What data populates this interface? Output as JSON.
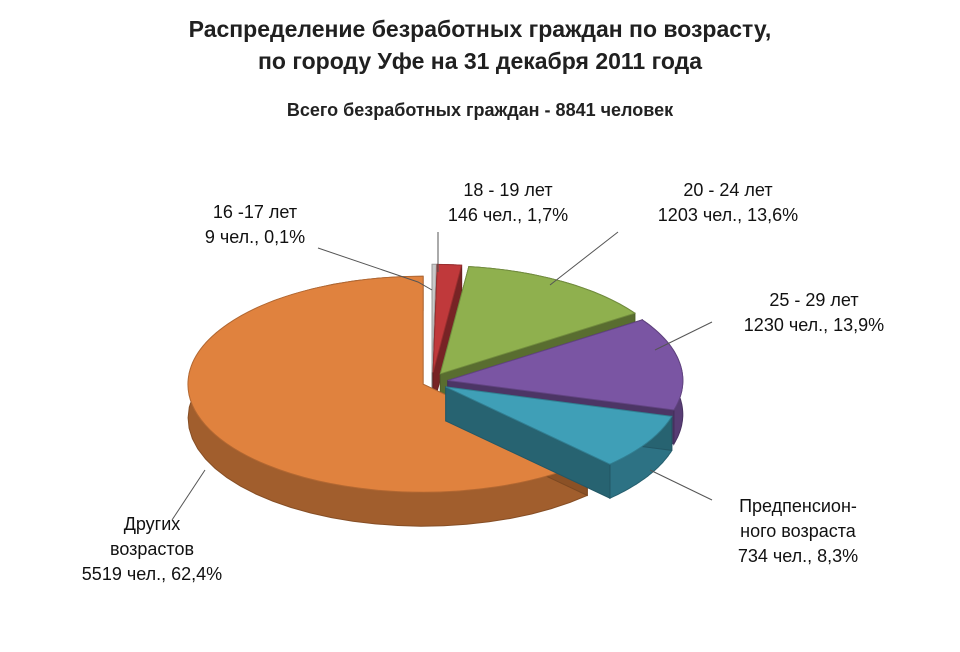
{
  "header": {
    "title_line1": "Распределение безработных граждан по возрасту,",
    "title_line2": "по городу Уфе на 31 декабря 2011 года",
    "subtitle": "Всего безработных граждан - 8841 человек"
  },
  "chart_data": {
    "type": "pie",
    "title": "Распределение безработных граждан по возрасту, по городу Уфе на 31 декабря 2011 года",
    "subtitle": "Всего безработных граждан - 8841 человек",
    "total": 8841,
    "unit": "чел.",
    "slices": [
      {
        "label": "16 -17 лет",
        "value": 9,
        "percent": 0.1,
        "value_label": "9 чел., 0,1%",
        "color": "#c9c9c9",
        "exploded": true
      },
      {
        "label": "18 - 19 лет",
        "value": 146,
        "percent": 1.7,
        "value_label": "146 чел., 1,7%",
        "color": "#c0393b",
        "exploded": true
      },
      {
        "label": "20 - 24 лет",
        "value": 1203,
        "percent": 13.6,
        "value_label": "1203 чел., 13,6%",
        "color": "#8fb04e",
        "exploded": true
      },
      {
        "label": "25 - 29 лет",
        "value": 1230,
        "percent": 13.9,
        "value_label": "1230 чел., 13,9%",
        "color": "#7a55a3",
        "exploded": true
      },
      {
        "label": "Предпенсион- ного возраста",
        "value": 734,
        "percent": 8.3,
        "value_label": "734 чел., 8,3%",
        "color": "#3f9fb7",
        "exploded": true
      },
      {
        "label": "Других возрастов",
        "value": 5519,
        "percent": 62.4,
        "value_label": "5519 чел., 62,4%",
        "color": "#e0823e",
        "exploded": true
      }
    ]
  },
  "labels": {
    "s1617_l1": "16 -17 лет",
    "s1617_l2": "9 чел., 0,1%",
    "s1819_l1": "18 - 19 лет",
    "s1819_l2": "146 чел., 1,7%",
    "s2024_l1": "20 - 24 лет",
    "s2024_l2": "1203 чел., 13,6%",
    "s2529_l1": "25 - 29 лет",
    "s2529_l2": "1230 чел., 13,9%",
    "pre_l1": "Предпенсион-",
    "pre_l2": "ного возраста",
    "pre_l3": "734 чел., 8,3%",
    "other_l1": "Других",
    "other_l2": "возрастов",
    "other_l3": "5519 чел., 62,4%"
  }
}
